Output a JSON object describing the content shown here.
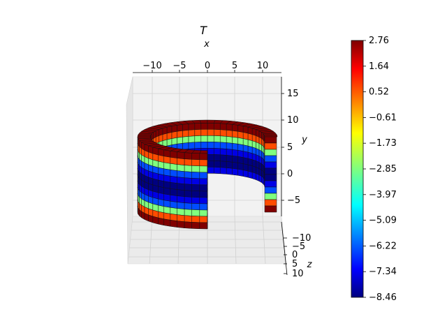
{
  "chart_data": {
    "type": "3d-surface",
    "title": "T",
    "shape": "partial cylindrical shell (about 270 degrees), radial layers with angular and height segments",
    "colormap": "jet",
    "x_axis": {
      "label": "x",
      "ticks": [
        "−10",
        "−5",
        "0",
        "5",
        "10"
      ],
      "position": "top"
    },
    "y_axis": {
      "label": "y",
      "ticks": [
        "−5",
        "0",
        "5",
        "10",
        "15"
      ],
      "position": "right"
    },
    "z_axis": {
      "label": "z",
      "ticks": [
        "−10",
        "−5",
        "0",
        "5",
        "10"
      ],
      "position": "bottom-right"
    },
    "colorbar": {
      "min": -8.46,
      "max": 2.76,
      "ticks": [
        "2.76",
        "1.64",
        "0.52",
        "−0.61",
        "−1.73",
        "−2.85",
        "−3.97",
        "−5.09",
        "−6.22",
        "−7.34",
        "−8.46"
      ]
    },
    "band_values_top_to_bottom": [
      2.76,
      0.52,
      -2.85,
      -6.22,
      -7.34,
      -8.46,
      -8.46,
      -7.34,
      -6.22,
      -2.85,
      0.52,
      2.76
    ]
  }
}
